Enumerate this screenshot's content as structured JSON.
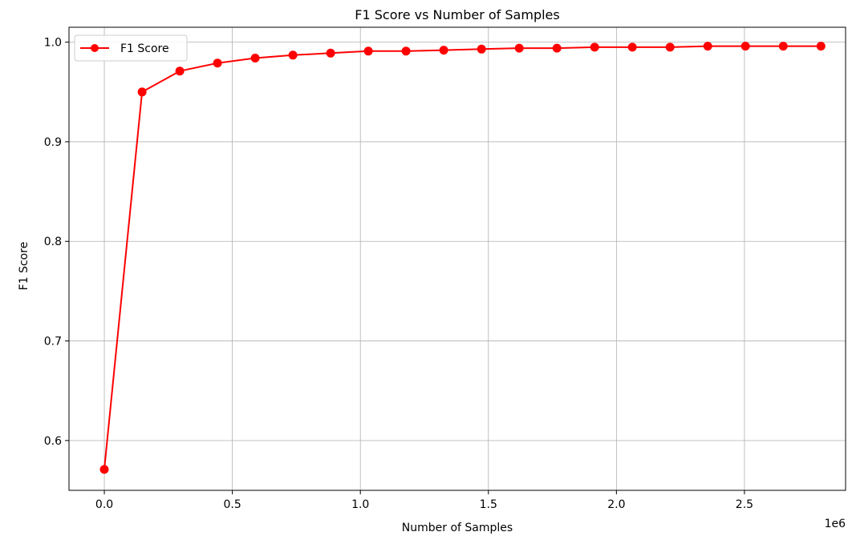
{
  "chart_data": {
    "type": "line",
    "title": "F1 Score vs Number of Samples",
    "xlabel": "Number of Samples",
    "ylabel": "F1 Score",
    "x_offset_text": "1e6",
    "x_scale_exponent": 6,
    "xlim": [
      -0.138,
      2.895
    ],
    "ylim": [
      0.55,
      1.015
    ],
    "x_ticks": [
      0.0,
      0.5,
      1.0,
      1.5,
      2.0,
      2.5
    ],
    "x_tick_labels": [
      "0.0",
      "0.5",
      "1.0",
      "1.5",
      "2.0",
      "2.5"
    ],
    "y_ticks": [
      0.6,
      0.7,
      0.8,
      0.9,
      1.0
    ],
    "y_tick_labels": [
      "0.6",
      "0.7",
      "0.8",
      "0.9",
      "1.0"
    ],
    "grid": true,
    "legend": "upper-left",
    "colors": {
      "series": "#ff0000",
      "grid": "#b0b0b0",
      "axes": "#000000"
    },
    "series": [
      {
        "name": "F1 Score",
        "marker": "circle",
        "x": [
          0.0,
          0.1473,
          0.2946,
          0.4419,
          0.5892,
          0.7365,
          0.8838,
          1.0311,
          1.1784,
          1.3257,
          1.473,
          1.6203,
          1.7676,
          1.9149,
          2.0622,
          2.2095,
          2.3568,
          2.5041,
          2.6514,
          2.7987
        ],
        "values": [
          0.571,
          0.95,
          0.971,
          0.979,
          0.984,
          0.987,
          0.989,
          0.991,
          0.991,
          0.992,
          0.993,
          0.994,
          0.994,
          0.995,
          0.995,
          0.995,
          0.996,
          0.996,
          0.996,
          0.996
        ]
      }
    ]
  }
}
